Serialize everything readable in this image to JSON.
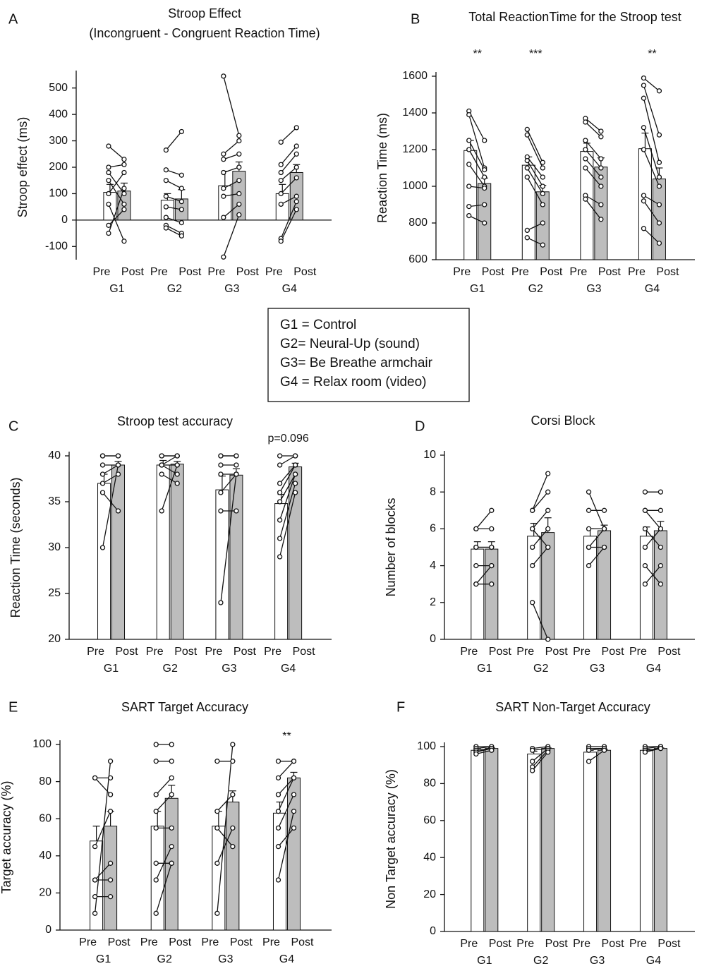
{
  "chart_data": [
    {
      "type": "bar",
      "label": "A",
      "title": "Stroop Effect",
      "subtitle": "(Incongruent - Congruent Reaction Time)",
      "ylabel": "Stroop effect (ms)",
      "ylim": [
        -150,
        550
      ],
      "yticks": [
        -100,
        0,
        100,
        200,
        300,
        400,
        500
      ],
      "categories": [
        "G1",
        "G2",
        "G3",
        "G4"
      ],
      "series": [
        {
          "name": "Pre",
          "color": "#ffffff",
          "values": [
            105,
            75,
            130,
            100
          ],
          "errors": [
            30,
            25,
            55,
            35
          ]
        },
        {
          "name": "Post",
          "color": "#bdbdbd",
          "values": [
            110,
            80,
            185,
            180
          ],
          "errors": [
            30,
            35,
            35,
            30
          ]
        }
      ],
      "subjects": [
        {
          "pre": [
            280,
            200,
            180,
            150,
            100,
            60,
            -20,
            -50
          ],
          "post": [
            230,
            210,
            100,
            60,
            180,
            -80,
            40,
            120
          ]
        },
        {
          "pre": [
            265,
            190,
            150,
            90,
            50,
            10,
            -20,
            -30
          ],
          "post": [
            335,
            170,
            120,
            70,
            40,
            -10,
            -50,
            -60
          ]
        },
        {
          "pre": [
            545,
            250,
            230,
            180,
            120,
            90,
            10,
            -140
          ],
          "post": [
            320,
            300,
            250,
            200,
            150,
            100,
            60,
            20
          ]
        },
        {
          "pre": [
            295,
            210,
            180,
            150,
            100,
            60,
            -70,
            -80
          ],
          "post": [
            350,
            280,
            250,
            200,
            160,
            90,
            70,
            40
          ]
        }
      ]
    },
    {
      "type": "bar",
      "label": "B",
      "title": "Total ReactionTime for the Stroop test",
      "ylabel": "Reaction Time (ms)",
      "ylim": [
        600,
        1600
      ],
      "yticks": [
        600,
        800,
        1000,
        1200,
        1400,
        1600
      ],
      "categories": [
        "G1",
        "G2",
        "G3",
        "G4"
      ],
      "series": [
        {
          "name": "Pre",
          "color": "#ffffff",
          "values": [
            1195,
            1115,
            1190,
            1205
          ],
          "errors": [
            55,
            45,
            45,
            85
          ]
        },
        {
          "name": "Post",
          "color": "#bdbdbd",
          "values": [
            1015,
            970,
            1105,
            1040
          ],
          "errors": [
            30,
            35,
            50,
            60
          ]
        }
      ],
      "annotations": [
        "**",
        "***",
        null,
        "**"
      ],
      "subjects": [
        {
          "pre": [
            1410,
            1390,
            1250,
            1200,
            1120,
            1000,
            890,
            840
          ],
          "post": [
            1250,
            1100,
            1090,
            1050,
            1000,
            990,
            900,
            800
          ]
        },
        {
          "pre": [
            1310,
            1280,
            1160,
            1140,
            1100,
            1050,
            760,
            720
          ],
          "post": [
            1130,
            1100,
            1050,
            1000,
            960,
            900,
            800,
            680
          ]
        },
        {
          "pre": [
            1370,
            1350,
            1250,
            1200,
            1150,
            1100,
            950,
            930
          ],
          "post": [
            1300,
            1270,
            1150,
            1100,
            1050,
            1000,
            900,
            820
          ]
        },
        {
          "pre": [
            1590,
            1550,
            1480,
            1320,
            1200,
            950,
            920,
            770
          ],
          "post": [
            1520,
            1280,
            1130,
            1050,
            1000,
            900,
            800,
            690
          ]
        }
      ]
    },
    {
      "type": "bar",
      "label": "C",
      "title": "Stroop test accuracy",
      "ylabel": "Reaction Time (seconds)",
      "ylim": [
        20,
        40
      ],
      "yticks": [
        20,
        25,
        30,
        35,
        40
      ],
      "categories": [
        "G1",
        "G2",
        "G3",
        "G4"
      ],
      "series": [
        {
          "name": "Pre",
          "color": "#ffffff",
          "values": [
            37,
            39,
            36.3,
            34.8
          ],
          "errors": [
            1,
            0.5,
            1.5,
            1
          ]
        },
        {
          "name": "Post",
          "color": "#bdbdbd",
          "values": [
            39,
            39.1,
            37.9,
            38.8
          ],
          "errors": [
            0.4,
            0.3,
            0.7,
            0.4
          ]
        }
      ],
      "annotations": [
        null,
        null,
        null,
        "p=0.096"
      ],
      "subjects": [
        {
          "pre": [
            40,
            40,
            39,
            38,
            37,
            36,
            30
          ],
          "post": [
            40,
            40,
            39,
            39,
            38,
            34,
            39
          ]
        },
        {
          "pre": [
            40,
            40,
            39,
            39,
            39,
            38,
            34
          ],
          "post": [
            40,
            40,
            40,
            39,
            38,
            37,
            39
          ]
        },
        {
          "pre": [
            40,
            40,
            39,
            38,
            36,
            34,
            24
          ],
          "post": [
            40,
            40,
            39,
            38,
            38,
            34,
            38
          ]
        },
        {
          "pre": [
            40,
            39,
            37,
            36,
            35,
            33,
            31,
            29
          ],
          "post": [
            40,
            40,
            39,
            39,
            38,
            38,
            37,
            36
          ]
        }
      ]
    },
    {
      "type": "bar",
      "label": "D",
      "title": "Corsi Block",
      "ylabel": "Number of blocks",
      "ylim": [
        0,
        10
      ],
      "yticks": [
        0,
        2,
        4,
        6,
        8,
        10
      ],
      "categories": [
        "G1",
        "G2",
        "G3",
        "G4"
      ],
      "series": [
        {
          "name": "Pre",
          "color": "#ffffff",
          "values": [
            4.9,
            5.6,
            5.6,
            5.6
          ],
          "errors": [
            0.4,
            0.7,
            0.4,
            0.5
          ]
        },
        {
          "name": "Post",
          "color": "#bdbdbd",
          "values": [
            4.9,
            5.8,
            5.9,
            5.9
          ],
          "errors": [
            0.4,
            0.8,
            0.3,
            0.5
          ]
        }
      ],
      "subjects": [
        {
          "pre": [
            6,
            6,
            5,
            5,
            4,
            3,
            3
          ],
          "post": [
            7,
            6,
            5,
            5,
            4,
            3,
            4
          ]
        },
        {
          "pre": [
            7,
            7,
            6,
            6,
            5,
            2,
            4
          ],
          "post": [
            9,
            8,
            7,
            5,
            6,
            0,
            5
          ]
        },
        {
          "pre": [
            8,
            7,
            6,
            5,
            5,
            4
          ],
          "post": [
            6,
            7,
            6,
            5,
            6,
            5
          ]
        },
        {
          "pre": [
            8,
            7,
            7,
            6,
            5,
            4,
            3
          ],
          "post": [
            8,
            7,
            6,
            5,
            6,
            3,
            4
          ]
        }
      ]
    },
    {
      "type": "bar",
      "label": "E",
      "title": "SART Target Accuracy",
      "ylabel": "Target accuracy (%)",
      "ylim": [
        0,
        100
      ],
      "yticks": [
        0,
        20,
        40,
        60,
        80,
        100
      ],
      "categories": [
        "G1",
        "G2",
        "G3",
        "G4"
      ],
      "series": [
        {
          "name": "Pre",
          "color": "#ffffff",
          "values": [
            48,
            56,
            56,
            63
          ],
          "errors": [
            8,
            8,
            8,
            6
          ]
        },
        {
          "name": "Post",
          "color": "#bdbdbd",
          "values": [
            56,
            71,
            69,
            82
          ],
          "errors": [
            8,
            7,
            6,
            3
          ]
        }
      ],
      "annotations": [
        null,
        null,
        null,
        "**"
      ],
      "subjects": [
        {
          "pre": [
            82,
            82,
            45,
            27,
            27,
            18,
            9
          ],
          "post": [
            82,
            73,
            64,
            36,
            27,
            18,
            91
          ]
        },
        {
          "pre": [
            100,
            91,
            73,
            64,
            55,
            36,
            27,
            9
          ],
          "post": [
            100,
            91,
            82,
            73,
            55,
            36,
            45,
            36
          ]
        },
        {
          "pre": [
            91,
            64,
            55,
            36,
            9
          ],
          "post": [
            91,
            73,
            45,
            55,
            100
          ]
        },
        {
          "pre": [
            91,
            82,
            73,
            64,
            55,
            45,
            27
          ],
          "post": [
            91,
            91,
            82,
            82,
            73,
            55,
            64
          ]
        }
      ]
    },
    {
      "type": "bar",
      "label": "F",
      "title": "SART Non-Target Accuracy",
      "ylabel": "Non Target accuracy (%)",
      "ylim": [
        0,
        100
      ],
      "yticks": [
        0,
        20,
        40,
        60,
        80,
        100
      ],
      "categories": [
        "G1",
        "G2",
        "G3",
        "G4"
      ],
      "series": [
        {
          "name": "Pre",
          "color": "#ffffff",
          "values": [
            98,
            96,
            97,
            98
          ],
          "errors": [
            1,
            1.5,
            1,
            0.5
          ]
        },
        {
          "name": "Post",
          "color": "#bdbdbd",
          "values": [
            99,
            99,
            98,
            99
          ],
          "errors": [
            0.3,
            0.3,
            0.5,
            0.3
          ]
        }
      ],
      "subjects": [
        {
          "pre": [
            100,
            99,
            98,
            97,
            96
          ],
          "post": [
            100,
            100,
            99,
            99,
            98
          ]
        },
        {
          "pre": [
            99,
            98,
            92,
            89,
            87
          ],
          "post": [
            100,
            99,
            99,
            98,
            97
          ]
        },
        {
          "pre": [
            100,
            99,
            98,
            92
          ],
          "post": [
            100,
            99,
            99,
            98
          ]
        },
        {
          "pre": [
            100,
            99,
            98,
            97
          ],
          "post": [
            100,
            100,
            99,
            99
          ]
        }
      ]
    }
  ],
  "key": [
    "G1 = Control",
    "G2= Neural-Up (sound)",
    "G3= Be Breathe armchair",
    "G4 = Relax room (video)"
  ]
}
